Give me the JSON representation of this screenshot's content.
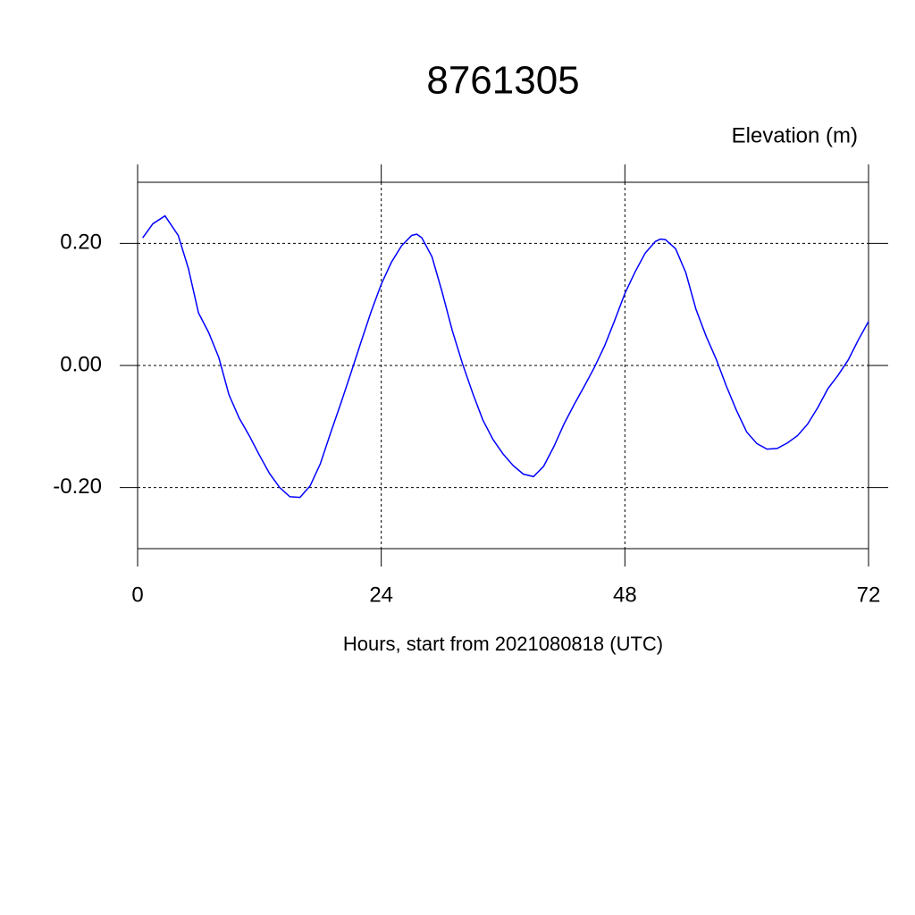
{
  "chart_data": {
    "type": "line",
    "title": "8761305",
    "right_label": "Elevation (m)",
    "x_label": "Hours, start from 2021080818 (UTC)",
    "xlim": [
      0,
      72
    ],
    "xticks": [
      0,
      24,
      48,
      72
    ],
    "ylim": [
      -0.3,
      0.3
    ],
    "yticks": [
      {
        "value": -0.2,
        "label": "-0.20"
      },
      {
        "value": 0,
        "label": "0.00"
      },
      {
        "value": 0.2,
        "label": "0.20"
      }
    ],
    "grid": true,
    "series": [
      {
        "color": "#0000ff",
        "x": [
          0.5,
          1.5,
          2.7,
          4,
          5,
          6,
          7,
          8,
          9,
          10,
          11,
          12,
          13,
          14,
          15,
          16,
          17,
          18,
          19,
          20,
          21,
          22,
          23,
          24,
          25,
          26,
          27,
          27.5,
          28,
          29,
          30,
          31,
          32,
          33,
          34,
          35,
          36,
          37,
          38,
          39,
          40,
          41,
          42,
          43,
          44,
          45,
          46,
          47,
          48,
          49,
          50,
          51,
          51.5,
          52,
          53,
          54,
          55,
          56,
          57,
          58,
          59,
          60,
          61,
          62,
          63,
          64,
          65,
          66,
          67,
          68,
          69,
          70,
          71,
          72
        ],
        "values": [
          0.209,
          0.232,
          0.245,
          0.213,
          0.159,
          0.086,
          0.054,
          0.013,
          -0.048,
          -0.086,
          -0.115,
          -0.147,
          -0.177,
          -0.2,
          -0.215,
          -0.216,
          -0.197,
          -0.161,
          -0.111,
          -0.063,
          -0.013,
          0.038,
          0.088,
          0.133,
          0.169,
          0.196,
          0.213,
          0.215,
          0.209,
          0.178,
          0.12,
          0.057,
          0.003,
          -0.045,
          -0.089,
          -0.121,
          -0.145,
          -0.164,
          -0.178,
          -0.182,
          -0.165,
          -0.133,
          -0.096,
          -0.064,
          -0.034,
          -0.003,
          0.032,
          0.074,
          0.118,
          0.153,
          0.184,
          0.203,
          0.207,
          0.206,
          0.191,
          0.152,
          0.092,
          0.048,
          0.01,
          -0.034,
          -0.074,
          -0.109,
          -0.128,
          -0.137,
          -0.136,
          -0.127,
          -0.115,
          -0.096,
          -0.069,
          -0.038,
          -0.016,
          0.009,
          0.042,
          0.072
        ]
      }
    ]
  }
}
